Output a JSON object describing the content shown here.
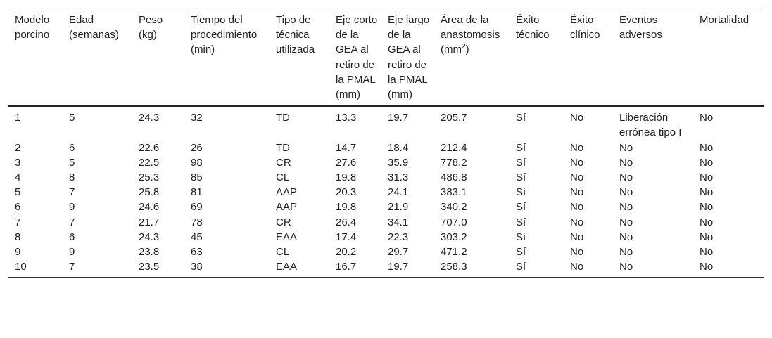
{
  "table": {
    "headers": [
      "Modelo porcino",
      "Edad (semanas)",
      "Peso (kg)",
      "Tiempo del procedimiento (min)",
      "Tipo de técnica utilizada",
      "Eje corto de la GEA al retiro de la PMAL (mm)",
      "Eje largo de la GEA al retiro de la PMAL (mm)",
      "Área de la anastomosis (mm",
      "Éxito técnico",
      "Éxito clínico",
      "Eventos adversos",
      "Mortalidad"
    ],
    "header_area_sup": "2",
    "header_area_close": ")",
    "rows": [
      [
        "1",
        "5",
        "24.3",
        "32",
        "TD",
        "13.3",
        "19.7",
        "205.7",
        "Sí",
        "No",
        "Liberación errónea tipo I",
        "No"
      ],
      [
        "2",
        "6",
        "22.6",
        "26",
        "TD",
        "14.7",
        "18.4",
        "212.4",
        "Sí",
        "No",
        "No",
        "No"
      ],
      [
        "3",
        "5",
        "22.5",
        "98",
        "CR",
        "27.6",
        "35.9",
        "778.2",
        "Sí",
        "No",
        "No",
        "No"
      ],
      [
        "4",
        "8",
        "25.3",
        "85",
        "CL",
        "19.8",
        "31.3",
        "486.8",
        "Sí",
        "No",
        "No",
        "No"
      ],
      [
        "5",
        "7",
        "25.8",
        "81",
        "AAP",
        "20.3",
        "24.1",
        "383.1",
        "Sí",
        "No",
        "No",
        "No"
      ],
      [
        "6",
        "9",
        "24.6",
        "69",
        "AAP",
        "19.8",
        "21.9",
        "340.2",
        "Sí",
        "No",
        "No",
        "No"
      ],
      [
        "7",
        "7",
        "21.7",
        "78",
        "CR",
        "26.4",
        "34.1",
        "707.0",
        "Sí",
        "No",
        "No",
        "No"
      ],
      [
        "8",
        "6",
        "24.3",
        "45",
        "EAA",
        "17.4",
        "22.3",
        "303.2",
        "Sí",
        "No",
        "No",
        "No"
      ],
      [
        "9",
        "9",
        "23.8",
        "63",
        "CL",
        "20.2",
        "29.7",
        "471.2",
        "Sí",
        "No",
        "No",
        "No"
      ],
      [
        "10",
        "7",
        "23.5",
        "38",
        "EAA",
        "16.7",
        "19.7",
        "258.3",
        "Sí",
        "No",
        "No",
        "No"
      ]
    ]
  }
}
